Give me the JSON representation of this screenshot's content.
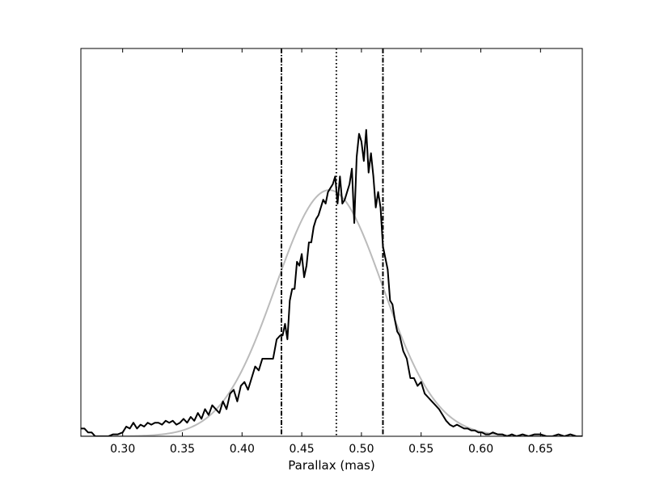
{
  "chart_data": {
    "type": "line",
    "title": "",
    "xlabel": "Parallax (mas)",
    "ylabel": "",
    "xlim": [
      0.265,
      0.685
    ],
    "ylim": [
      0,
      1.0
    ],
    "xticks": [
      0.3,
      0.35,
      0.4,
      0.45,
      0.5,
      0.55,
      0.6,
      0.65
    ],
    "xtick_labels": [
      "0.30",
      "0.35",
      "0.40",
      "0.45",
      "0.50",
      "0.55",
      "0.60",
      "0.65"
    ],
    "yticks_visible": false,
    "grid": false,
    "legend": "none",
    "series": [
      {
        "style": "solid",
        "color": "#000000",
        "x": [
          0.265,
          0.268,
          0.271,
          0.274,
          0.277,
          0.28,
          0.284,
          0.288,
          0.292,
          0.296,
          0.3,
          0.303,
          0.306,
          0.309,
          0.312,
          0.315,
          0.318,
          0.321,
          0.324,
          0.327,
          0.33,
          0.333,
          0.336,
          0.339,
          0.342,
          0.345,
          0.348,
          0.351,
          0.354,
          0.357,
          0.36,
          0.363,
          0.366,
          0.369,
          0.372,
          0.375,
          0.378,
          0.381,
          0.384,
          0.387,
          0.39,
          0.393,
          0.396,
          0.399,
          0.402,
          0.405,
          0.408,
          0.411,
          0.414,
          0.417,
          0.42,
          0.423,
          0.426,
          0.429,
          0.432,
          0.434,
          0.436,
          0.438,
          0.44,
          0.442,
          0.444,
          0.446,
          0.448,
          0.45,
          0.452,
          0.454,
          0.456,
          0.458,
          0.46,
          0.462,
          0.464,
          0.466,
          0.468,
          0.47,
          0.472,
          0.474,
          0.476,
          0.478,
          0.48,
          0.482,
          0.484,
          0.486,
          0.488,
          0.49,
          0.492,
          0.494,
          0.496,
          0.498,
          0.5,
          0.502,
          0.504,
          0.506,
          0.508,
          0.51,
          0.512,
          0.514,
          0.516,
          0.518,
          0.52,
          0.522,
          0.524,
          0.526,
          0.528,
          0.53,
          0.532,
          0.535,
          0.538,
          0.541,
          0.544,
          0.547,
          0.55,
          0.553,
          0.556,
          0.559,
          0.562,
          0.565,
          0.568,
          0.571,
          0.574,
          0.577,
          0.58,
          0.583,
          0.586,
          0.589,
          0.592,
          0.595,
          0.598,
          0.601,
          0.604,
          0.607,
          0.61,
          0.614,
          0.618,
          0.622,
          0.626,
          0.63,
          0.635,
          0.64,
          0.645,
          0.65,
          0.655,
          0.66,
          0.665,
          0.67,
          0.675,
          0.68,
          0.685
        ],
        "y": [
          0.02,
          0.02,
          0.01,
          0.01,
          0.0,
          0.0,
          0.0,
          0.0,
          0.005,
          0.005,
          0.01,
          0.025,
          0.02,
          0.035,
          0.02,
          0.03,
          0.025,
          0.035,
          0.03,
          0.035,
          0.035,
          0.03,
          0.04,
          0.035,
          0.04,
          0.03,
          0.035,
          0.045,
          0.035,
          0.05,
          0.04,
          0.06,
          0.045,
          0.07,
          0.055,
          0.08,
          0.07,
          0.06,
          0.09,
          0.07,
          0.11,
          0.12,
          0.09,
          0.13,
          0.14,
          0.12,
          0.15,
          0.18,
          0.17,
          0.2,
          0.2,
          0.2,
          0.2,
          0.25,
          0.26,
          0.26,
          0.29,
          0.25,
          0.35,
          0.38,
          0.38,
          0.45,
          0.44,
          0.47,
          0.41,
          0.44,
          0.5,
          0.5,
          0.54,
          0.56,
          0.57,
          0.59,
          0.61,
          0.6,
          0.63,
          0.64,
          0.65,
          0.67,
          0.6,
          0.67,
          0.6,
          0.61,
          0.63,
          0.65,
          0.69,
          0.55,
          0.72,
          0.78,
          0.76,
          0.71,
          0.79,
          0.68,
          0.73,
          0.67,
          0.59,
          0.63,
          0.59,
          0.49,
          0.46,
          0.43,
          0.35,
          0.34,
          0.3,
          0.27,
          0.26,
          0.22,
          0.2,
          0.15,
          0.15,
          0.13,
          0.14,
          0.11,
          0.1,
          0.09,
          0.08,
          0.07,
          0.055,
          0.04,
          0.03,
          0.025,
          0.03,
          0.025,
          0.02,
          0.02,
          0.015,
          0.015,
          0.01,
          0.01,
          0.005,
          0.005,
          0.01,
          0.005,
          0.005,
          0.0,
          0.005,
          0.0,
          0.005,
          0.0,
          0.005,
          0.005,
          0.0,
          0.0,
          0.005,
          0.0,
          0.005,
          0.0,
          0.0
        ]
      },
      {
        "style": "solid",
        "color": "#bbbbbb",
        "gaussian": {
          "mean": 0.473,
          "sigma": 0.045,
          "peak": 0.635
        }
      }
    ],
    "vlines": [
      {
        "x": 0.433,
        "style": "dashdot",
        "color": "#000000"
      },
      {
        "x": 0.479,
        "style": "dotted",
        "color": "#000000"
      },
      {
        "x": 0.518,
        "style": "dashdot",
        "color": "#000000"
      }
    ]
  }
}
